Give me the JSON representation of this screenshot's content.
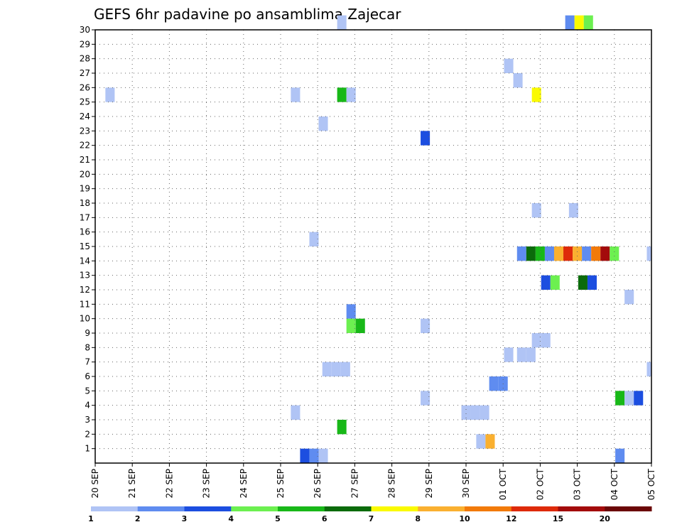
{
  "chart_data": {
    "type": "heatmap",
    "title": "GEFS 6hr padavine po ansamblima Zajecar",
    "xlabel": "",
    "ylabel": "",
    "x_ticks": [
      "20 SEP",
      "21 SEP",
      "22 SEP",
      "23 SEP",
      "24 SEP",
      "25 SEP",
      "26 SEP",
      "27 SEP",
      "28 SEP",
      "29 SEP",
      "30 SEP",
      "01 OCT",
      "02 OCT",
      "03 OCT",
      "04 OCT",
      "05 OCT"
    ],
    "x_range": [
      0,
      60
    ],
    "y_ticks": [
      1,
      2,
      3,
      4,
      5,
      6,
      7,
      8,
      9,
      10,
      11,
      12,
      13,
      14,
      15,
      16,
      17,
      18,
      19,
      20,
      21,
      22,
      23,
      24,
      25,
      26,
      27,
      28,
      29,
      30
    ],
    "y_range": [
      0,
      30
    ],
    "grid": true,
    "colorbar": {
      "labels": [
        "1",
        "2",
        "3",
        "4",
        "5",
        "6",
        "7",
        "8",
        "10",
        "12",
        "15",
        "20"
      ],
      "colors": [
        "#b0c4f5",
        "#5f8cf0",
        "#1c4ee0",
        "#6cf050",
        "#18b818",
        "#0b6b0b",
        "#fafa00",
        "#fab030",
        "#f27a0a",
        "#de2a0a",
        "#a30b0b",
        "#6b0707"
      ]
    },
    "cells": [
      {
        "t": 26.6,
        "m": 30,
        "c": 0
      },
      {
        "t": 51.2,
        "m": 30,
        "c": 1
      },
      {
        "t": 52.2,
        "m": 30,
        "c": 6
      },
      {
        "t": 53.2,
        "m": 30,
        "c": 3
      },
      {
        "t": 1.6,
        "m": 25,
        "c": 0
      },
      {
        "t": 21.6,
        "m": 25,
        "c": 0
      },
      {
        "t": 26.6,
        "m": 25,
        "c": 4
      },
      {
        "t": 27.6,
        "m": 25,
        "c": 0
      },
      {
        "t": 47.6,
        "m": 25,
        "c": 6
      },
      {
        "t": 44.6,
        "m": 27,
        "c": 0
      },
      {
        "t": 45.6,
        "m": 26,
        "c": 0
      },
      {
        "t": 24.6,
        "m": 23,
        "c": 0
      },
      {
        "t": 35.6,
        "m": 22,
        "c": 2
      },
      {
        "t": 47.6,
        "m": 17,
        "c": 0
      },
      {
        "t": 51.6,
        "m": 17,
        "c": 0
      },
      {
        "t": 23.6,
        "m": 15,
        "c": 0
      },
      {
        "t": 46.0,
        "m": 14,
        "c": 1
      },
      {
        "t": 47.0,
        "m": 14,
        "c": 5
      },
      {
        "t": 48.0,
        "m": 14,
        "c": 4
      },
      {
        "t": 49.0,
        "m": 14,
        "c": 1
      },
      {
        "t": 50.0,
        "m": 14,
        "c": 7
      },
      {
        "t": 51.0,
        "m": 14,
        "c": 9
      },
      {
        "t": 52.0,
        "m": 14,
        "c": 7
      },
      {
        "t": 53.0,
        "m": 14,
        "c": 1
      },
      {
        "t": 54.0,
        "m": 14,
        "c": 8
      },
      {
        "t": 55.0,
        "m": 14,
        "c": 10
      },
      {
        "t": 56.0,
        "m": 14,
        "c": 3
      },
      {
        "t": 60.0,
        "m": 14,
        "c": 0
      },
      {
        "t": 48.6,
        "m": 12,
        "c": 2
      },
      {
        "t": 49.6,
        "m": 12,
        "c": 3
      },
      {
        "t": 52.6,
        "m": 12,
        "c": 5
      },
      {
        "t": 53.6,
        "m": 12,
        "c": 2
      },
      {
        "t": 57.6,
        "m": 11,
        "c": 0
      },
      {
        "t": 27.6,
        "m": 10,
        "c": 1
      },
      {
        "t": 27.6,
        "m": 9,
        "c": 3
      },
      {
        "t": 28.6,
        "m": 9,
        "c": 4
      },
      {
        "t": 35.6,
        "m": 9,
        "c": 0
      },
      {
        "t": 47.6,
        "m": 8,
        "c": 0
      },
      {
        "t": 48.6,
        "m": 8,
        "c": 0
      },
      {
        "t": 44.6,
        "m": 7,
        "c": 0
      },
      {
        "t": 46.0,
        "m": 7,
        "c": 0
      },
      {
        "t": 47.0,
        "m": 7,
        "c": 0
      },
      {
        "t": 25.0,
        "m": 6,
        "c": 0
      },
      {
        "t": 26.0,
        "m": 6,
        "c": 0
      },
      {
        "t": 27.0,
        "m": 6,
        "c": 0
      },
      {
        "t": 60.0,
        "m": 6,
        "c": 0
      },
      {
        "t": 43.0,
        "m": 5,
        "c": 1
      },
      {
        "t": 44.0,
        "m": 5,
        "c": 1
      },
      {
        "t": 35.6,
        "m": 4,
        "c": 0
      },
      {
        "t": 56.6,
        "m": 4,
        "c": 4
      },
      {
        "t": 57.6,
        "m": 4,
        "c": 0
      },
      {
        "t": 58.6,
        "m": 4,
        "c": 2
      },
      {
        "t": 21.6,
        "m": 3,
        "c": 0
      },
      {
        "t": 40.0,
        "m": 3,
        "c": 0
      },
      {
        "t": 41.0,
        "m": 3,
        "c": 0
      },
      {
        "t": 42.0,
        "m": 3,
        "c": 0
      },
      {
        "t": 26.6,
        "m": 2,
        "c": 4
      },
      {
        "t": 41.6,
        "m": 1,
        "c": 0
      },
      {
        "t": 42.6,
        "m": 1,
        "c": 7
      },
      {
        "t": 22.6,
        "m": 0,
        "c": 2
      },
      {
        "t": 23.6,
        "m": 0,
        "c": 1
      },
      {
        "t": 24.6,
        "m": 0,
        "c": 0
      },
      {
        "t": 56.6,
        "m": 0,
        "c": 1
      }
    ]
  }
}
